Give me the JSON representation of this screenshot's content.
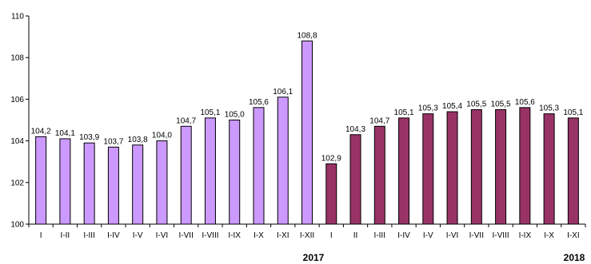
{
  "chart_data": {
    "type": "bar",
    "categories": [
      "I",
      "I-II",
      "I-III",
      "I-IV",
      "I-V",
      "I-VI",
      "I-VII",
      "I-VIII",
      "I-IX",
      "I-X",
      "I-XI",
      "I-XII",
      "I",
      "II",
      "I-III",
      "I-IV",
      "I-V",
      "I-VI",
      "I-VII",
      "I-VIII",
      "I-IX",
      "I-X",
      "I-XI"
    ],
    "series": [
      {
        "values": [
          104.2,
          104.1,
          103.9,
          103.7,
          103.8,
          104.0,
          104.7,
          105.1,
          105.0,
          105.6,
          106.1,
          108.8,
          102.9,
          104.3,
          104.7,
          105.1,
          105.3,
          105.4,
          105.5,
          105.5,
          105.6,
          105.3,
          105.1
        ],
        "labels": [
          "104,2",
          "104,1",
          "103,9",
          "103,7",
          "103,8",
          "104,0",
          "104,7",
          "105,1",
          "105,0",
          "105,6",
          "106,1",
          "108,8",
          "102,9",
          "104,3",
          "104,7",
          "105,1",
          "105,3",
          "105,4",
          "105,5",
          "105,5",
          "105,6",
          "105,3",
          "105,1"
        ]
      }
    ],
    "year_colors": [
      "#cc99ff",
      "#993366"
    ],
    "bar_year_index": [
      0,
      0,
      0,
      0,
      0,
      0,
      0,
      0,
      0,
      0,
      0,
      0,
      1,
      1,
      1,
      1,
      1,
      1,
      1,
      1,
      1,
      1,
      1
    ],
    "years": [
      "2017",
      "2018"
    ],
    "yticks": [
      "100",
      "102",
      "104",
      "106",
      "108",
      "110"
    ],
    "ylim": [
      100,
      110
    ],
    "grid": false,
    "legend": "none"
  }
}
